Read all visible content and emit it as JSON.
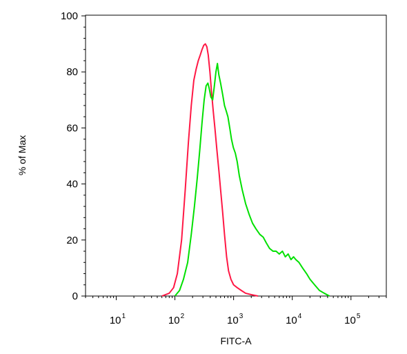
{
  "chart_data": {
    "type": "line",
    "title": "",
    "xlabel": "FITC-A",
    "ylabel": "% of Max",
    "x_scale": "log",
    "xlim": [
      3,
      400000
    ],
    "ylim": [
      0,
      100
    ],
    "y_ticks": [
      "0",
      "20",
      "40",
      "60",
      "80",
      "100"
    ],
    "x_ticks": [
      {
        "base": "10",
        "exp": "1",
        "value": 10
      },
      {
        "base": "10",
        "exp": "2",
        "value": 100
      },
      {
        "base": "10",
        "exp": "3",
        "value": 1000
      },
      {
        "base": "10",
        "exp": "4",
        "value": 10000
      },
      {
        "base": "10",
        "exp": "5",
        "value": 100000
      }
    ],
    "grid": false,
    "legend": "none",
    "series": [
      {
        "color": "#ff1744",
        "points": [
          [
            60,
            0
          ],
          [
            80,
            1
          ],
          [
            95,
            3
          ],
          [
            110,
            8
          ],
          [
            130,
            20
          ],
          [
            150,
            38
          ],
          [
            170,
            55
          ],
          [
            190,
            68
          ],
          [
            210,
            77
          ],
          [
            230,
            81
          ],
          [
            250,
            84
          ],
          [
            270,
            86
          ],
          [
            290,
            88
          ],
          [
            310,
            89.5
          ],
          [
            330,
            90
          ],
          [
            350,
            89
          ],
          [
            370,
            86
          ],
          [
            395,
            80
          ],
          [
            420,
            73
          ],
          [
            450,
            66
          ],
          [
            480,
            60
          ],
          [
            520,
            52
          ],
          [
            560,
            45
          ],
          [
            600,
            38
          ],
          [
            650,
            30
          ],
          [
            700,
            22
          ],
          [
            760,
            14
          ],
          [
            820,
            9
          ],
          [
            900,
            6
          ],
          [
            1000,
            4
          ],
          [
            1150,
            3
          ],
          [
            1350,
            2
          ],
          [
            1600,
            1
          ],
          [
            2000,
            0.5
          ],
          [
            2600,
            0
          ]
        ]
      },
      {
        "color": "#00e000",
        "points": [
          [
            100,
            0
          ],
          [
            120,
            2
          ],
          [
            140,
            6
          ],
          [
            165,
            12
          ],
          [
            190,
            22
          ],
          [
            215,
            32
          ],
          [
            240,
            42
          ],
          [
            265,
            52
          ],
          [
            290,
            62
          ],
          [
            315,
            70
          ],
          [
            340,
            75
          ],
          [
            365,
            76
          ],
          [
            385,
            74
          ],
          [
            410,
            71
          ],
          [
            440,
            70
          ],
          [
            470,
            75
          ],
          [
            500,
            80
          ],
          [
            530,
            83
          ],
          [
            560,
            79
          ],
          [
            600,
            76
          ],
          [
            650,
            72
          ],
          [
            700,
            68
          ],
          [
            750,
            66
          ],
          [
            800,
            64
          ],
          [
            860,
            60
          ],
          [
            920,
            56
          ],
          [
            990,
            53
          ],
          [
            1070,
            51
          ],
          [
            1150,
            48
          ],
          [
            1250,
            43
          ],
          [
            1400,
            38
          ],
          [
            1600,
            33
          ],
          [
            1850,
            29
          ],
          [
            2100,
            26
          ],
          [
            2400,
            24
          ],
          [
            2800,
            22
          ],
          [
            3200,
            21
          ],
          [
            3600,
            19
          ],
          [
            4100,
            17
          ],
          [
            4700,
            16
          ],
          [
            5300,
            16
          ],
          [
            6000,
            15
          ],
          [
            6800,
            16
          ],
          [
            7600,
            14
          ],
          [
            8500,
            15
          ],
          [
            9500,
            13
          ],
          [
            10500,
            14
          ],
          [
            11500,
            13
          ],
          [
            13000,
            12
          ],
          [
            15000,
            10
          ],
          [
            17500,
            8
          ],
          [
            20000,
            6
          ],
          [
            24000,
            4
          ],
          [
            29000,
            2
          ],
          [
            35000,
            1
          ],
          [
            43000,
            0
          ]
        ]
      }
    ]
  }
}
